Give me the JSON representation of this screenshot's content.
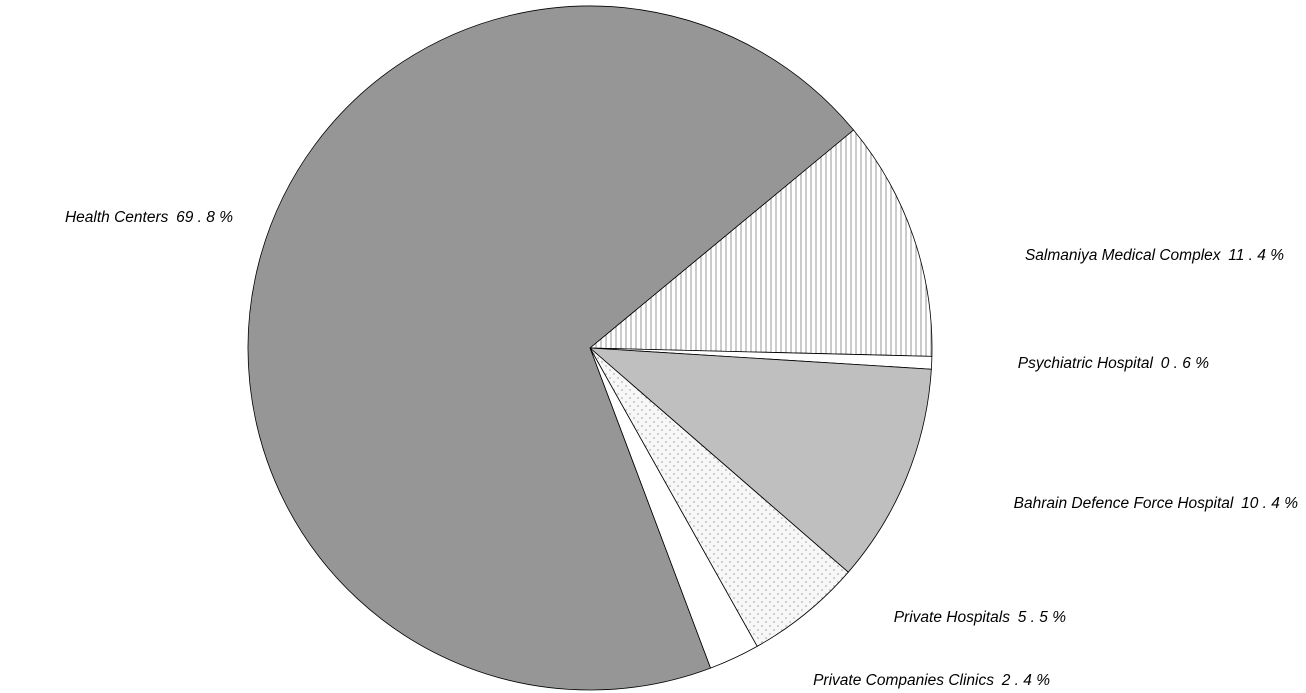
{
  "chart_data": {
    "type": "pie",
    "slices": [
      {
        "name": "Salmaniya Medical Complex",
        "value": 11.4,
        "value_text": "11 . 4 %",
        "fill": "vertical-stripes",
        "color": "#ffffff"
      },
      {
        "name": "Psychiatric Hospital",
        "value": 0.6,
        "value_text": "0 . 6 %",
        "fill": "solid",
        "color": "#ffffff"
      },
      {
        "name": "Bahrain Defence Force Hospital",
        "value": 10.4,
        "value_text": "10 . 4 %",
        "fill": "solid",
        "color": "#bfbfbf"
      },
      {
        "name": "Private Hospitals",
        "value": 5.5,
        "value_text": "5 . 5 %",
        "fill": "dots",
        "color": "#f2f2f2"
      },
      {
        "name": "Private Companies Clinics",
        "value": 2.4,
        "value_text": "2 . 4 %",
        "fill": "solid",
        "color": "#ffffff"
      },
      {
        "name": "Health Centers",
        "value": 69.8,
        "value_text": "69 . 8 %",
        "fill": "solid",
        "color": "#969696"
      }
    ]
  }
}
